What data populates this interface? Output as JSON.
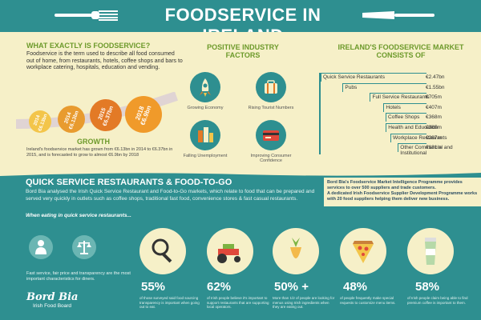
{
  "header": {
    "title": "FOODSERVICE IN IRELAND"
  },
  "foodservice": {
    "title": "WHAT EXACTLY IS FOODSERVICE?",
    "text": "Foodservice is the term used to describe all food consumed out of home, from restaurants, hotels, coffee shops and bars to workplace catering, hospitals, education and vending."
  },
  "growth": {
    "title": "GROWTH",
    "text": "Ireland's foodservice market has grown from €6.13bn in 2014 to €6.37bn in 2015, and is forecasted to grow to almost €6.9bn by 2018",
    "bubbles": [
      {
        "year": "2014",
        "value": "€6.13bn",
        "color": "#f3c54a"
      },
      {
        "year": "2014",
        "value": "€6.13bn",
        "color": "#e89b2f"
      },
      {
        "year": "2015",
        "value": "€6.37bn",
        "color": "#e37a26"
      },
      {
        "year": "2018",
        "value": "€6.9bn",
        "color": "#f09a2a"
      }
    ]
  },
  "factors": {
    "title": "POSITIVE INDUSTRY FACTORS",
    "items": [
      {
        "label": "Growing Economy",
        "icon": "rocket-icon"
      },
      {
        "label": "Rising Tourist Numbers",
        "icon": "suitcase-icon"
      },
      {
        "label": "Falling Unemployment",
        "icon": "buildings-icon"
      },
      {
        "label": "Improving Consumer Confidence",
        "icon": "credit-card-icon"
      }
    ]
  },
  "market": {
    "title": "IRELAND'S FOODSERVICE MARKET CONSISTS OF",
    "rows": [
      {
        "name": "Quick Service Restaurants",
        "value": "€2.47bn",
        "amount": 2.47
      },
      {
        "name": "Pubs",
        "value": "€1.55bn",
        "amount": 1.55
      },
      {
        "name": "Full Service Restaurants",
        "value": "€705m",
        "amount": 0.705
      },
      {
        "name": "Hotels",
        "value": "€407m",
        "amount": 0.407
      },
      {
        "name": "Coffee Shops",
        "value": "€368m",
        "amount": 0.368
      },
      {
        "name": "Health and Education",
        "value": "€365m",
        "amount": 0.365
      },
      {
        "name": "Workplace Restaurants",
        "value": "€287m",
        "amount": 0.287
      },
      {
        "name": "Other Commercial and Institutional",
        "value": "€181m",
        "amount": 0.181
      }
    ]
  },
  "qsr": {
    "title": "QUICK SERVICE RESTAURANTS & FOOD-TO-GO",
    "text": "Bord Bia analysed the Irish Quick Service Restaurant and Food-to-Go markets, which relate to food that can be prepared and served very quickly in outlets such as coffee shops, traditional fast food, convenience stores & fast casual restaurants.",
    "when": "When eating in quick service restaurants...",
    "fast_text": "Fast service, fair price and transparency are the most important characteristics for diners."
  },
  "bordbia_box": {
    "p1": "Bord Bia's Foodservice Market Intelligence Programme provides services to over 500 suppliers and trade customers.",
    "p2": "A dedicated Irish Foodservice Supplier Development Programme works with 20 food suppliers helping them deliver new business."
  },
  "logo": {
    "brand": "Bord Bia",
    "sub": "Irish Food Board"
  },
  "stats": [
    {
      "pct": "55%",
      "text": "of those surveyed said food sourcing transparency is important when going out to eat.",
      "icon": "magnifier-icon"
    },
    {
      "pct": "62%",
      "text": "of Irish people believe it's important to support restaurants that are supporting local operators.",
      "icon": "tractor-icon"
    },
    {
      "pct": "50% +",
      "text": "More than 1/2 of people are looking for menus using Irish ingredients when they are eating out.",
      "icon": "carrot-icon"
    },
    {
      "pct": "48%",
      "text": "of people frequently make special requests to customize menu items.",
      "icon": "pizza-icon"
    },
    {
      "pct": "58%",
      "text": "of Irish people claim being able to find premium coffee is important to them.",
      "icon": "coffee-cup-icon"
    }
  ]
}
